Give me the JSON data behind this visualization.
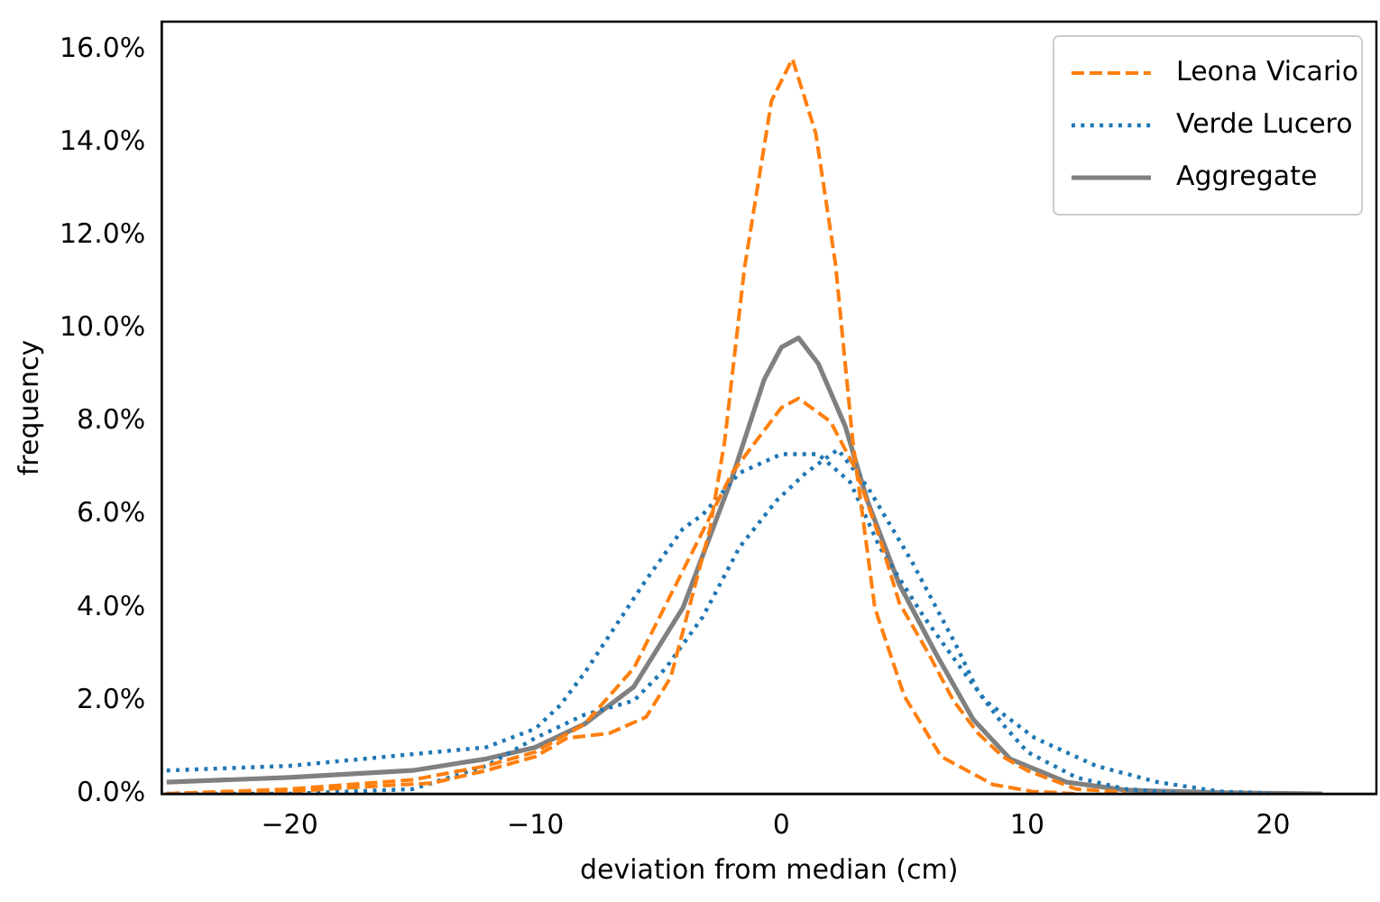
{
  "chart_data": {
    "type": "line",
    "xlabel": "deviation from median (cm)",
    "ylabel": "frequency",
    "xlim": [
      -25.2,
      24.2
    ],
    "xticks": [
      {
        "value": -20,
        "label": "−20"
      },
      {
        "value": -10,
        "label": "−10"
      },
      0,
      10,
      20
    ],
    "ylim": [
      0,
      16.6
    ],
    "yticks": [
      {
        "value": 0,
        "label": "0.0%"
      },
      {
        "value": 2,
        "label": "2.0%"
      },
      {
        "value": 4,
        "label": "4.0%"
      },
      {
        "value": 6,
        "label": "6.0%"
      },
      {
        "value": 8,
        "label": "8.0%"
      },
      {
        "value": 10,
        "label": "10.0%"
      },
      {
        "value": 12,
        "label": "12.0%"
      },
      {
        "value": 14,
        "label": "14.0%"
      },
      {
        "value": 16,
        "label": "16.0%"
      }
    ],
    "grid": false,
    "legend": "top right",
    "marker": "none",
    "series": [
      {
        "name": "Leona Vicario",
        "color": "#ff7f0e",
        "line_style": "dashed",
        "x": [
          -25,
          -20,
          -17,
          -14.2,
          -12,
          -10,
          -8.7,
          -7,
          -5.5,
          -4.5,
          -2.9,
          -2.3,
          -1.5,
          -0.4,
          0.45,
          1.4,
          2.2,
          2.9,
          3.8,
          5,
          6.5,
          8.6,
          10.2,
          12
        ],
        "values": [
          0,
          0.05,
          0.15,
          0.23,
          0.5,
          0.8,
          1.2,
          1.3,
          1.65,
          2.5,
          5.7,
          7.6,
          11.3,
          14.9,
          15.8,
          14.2,
          11.4,
          7.6,
          4,
          2.1,
          0.8,
          0.2,
          0.05,
          0
        ]
      },
      {
        "color": "#ff7f0e",
        "line_style": "dashed",
        "x": [
          -25,
          -20,
          -15,
          -12,
          -10,
          -8,
          -6,
          -4,
          -2,
          0,
          0.7,
          2,
          3,
          4,
          4.8,
          6,
          7,
          8,
          9,
          10,
          12,
          14
        ],
        "values": [
          0,
          0.1,
          0.3,
          0.6,
          0.9,
          1.5,
          2.7,
          4.8,
          6.9,
          8.3,
          8.5,
          8,
          7,
          5.5,
          4.1,
          3,
          2,
          1.3,
          0.8,
          0.5,
          0.1,
          0.03
        ]
      },
      {
        "name": "Verde Lucero",
        "color": "#1f77b4",
        "line_style": "dotted",
        "x": [
          -25,
          -20,
          -15,
          -12,
          -10,
          -9,
          -8,
          -7,
          -5.5,
          -4,
          -3.2,
          -2.7,
          -1.7,
          0,
          1.5,
          2.8,
          4,
          5.8,
          7.3,
          8.3,
          10.3,
          12.8,
          15.3,
          17.8,
          20
        ],
        "values": [
          0.5,
          0.6,
          0.85,
          1,
          1.4,
          1.9,
          2.6,
          3.4,
          4.6,
          5.7,
          6,
          6.3,
          6.9,
          7.3,
          7.3,
          6.7,
          5.3,
          3.8,
          2.7,
          2,
          1.2,
          0.6,
          0.25,
          0.05,
          0
        ]
      },
      {
        "color": "#1f77b4",
        "line_style": "dotted",
        "x": [
          -25,
          -20,
          -15,
          -12,
          -10,
          -8,
          -6,
          -4.7,
          -3.2,
          -1.7,
          -0.2,
          1,
          2.3,
          3.5,
          5.3,
          7.1,
          8,
          9,
          10,
          12,
          14,
          16
        ],
        "values": [
          0,
          0,
          0.1,
          0.6,
          1.2,
          1.7,
          2,
          2.7,
          3.8,
          5.3,
          6.3,
          6.9,
          7.4,
          6.6,
          5,
          3.2,
          2.2,
          1.5,
          0.9,
          0.35,
          0.1,
          0.02
        ]
      },
      {
        "name": "Aggregate",
        "color": "#808080",
        "line_style": "solid",
        "x": [
          -25,
          -20,
          -15,
          -12,
          -10,
          -8,
          -6,
          -4,
          -2,
          -0.7,
          0,
          0.7,
          1.5,
          2.6,
          3.5,
          4.8,
          6.3,
          7.8,
          9.3,
          11.6,
          14,
          18,
          22
        ],
        "values": [
          0.25,
          0.35,
          0.5,
          0.75,
          1,
          1.5,
          2.3,
          4,
          6.8,
          8.9,
          9.6,
          9.8,
          9.25,
          7.9,
          6.3,
          4.5,
          3,
          1.6,
          0.75,
          0.25,
          0.08,
          0.02,
          0
        ]
      }
    ]
  }
}
